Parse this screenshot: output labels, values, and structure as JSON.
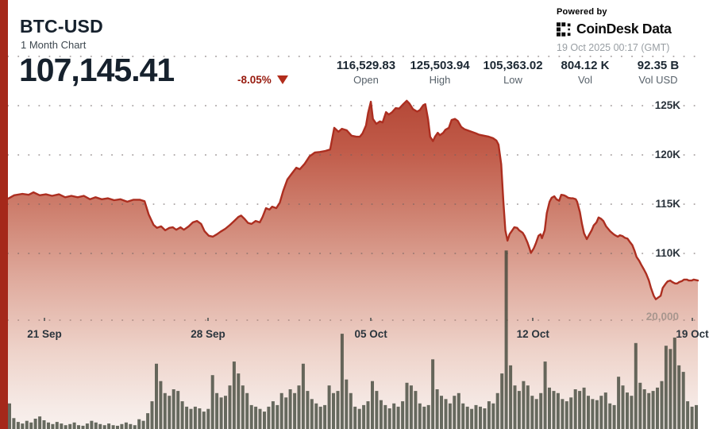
{
  "header": {
    "symbol": "BTC-USD",
    "period": "1 Month Chart",
    "price": "107,145.41",
    "change": "-8.05%",
    "stats": [
      {
        "value": "116,529.83",
        "label": "Open"
      },
      {
        "value": "125,503.94",
        "label": "High"
      },
      {
        "value": "105,363.02",
        "label": "Low"
      },
      {
        "value": "804.12 K",
        "label": "Vol"
      },
      {
        "value": "92.35 B",
        "label": "Vol USD"
      }
    ]
  },
  "branding": {
    "powered_by": "Powered by",
    "brand": "CoinDesk Data",
    "timestamp": "19 Oct 2025 00:17 (GMT)"
  },
  "colors": {
    "accent_line": "#ac2e20",
    "edge_bar": "#a5281a",
    "change_red": "#971a0e",
    "volume_bar": "rgba(62,68,55,0.78)",
    "fill_top": "#b34635",
    "fill_bottom": "#f9f2ef"
  },
  "chart_data": {
    "type": "area",
    "title": "BTC-USD 1 Month Chart",
    "legend": "none",
    "grid": "dotted horizontal",
    "y_axis": {
      "side": "right",
      "labels": [
        "125K",
        "120K",
        "115K",
        "110K"
      ],
      "label_values_k": [
        125,
        120,
        115,
        110
      ],
      "grid_values_k": [
        130,
        125,
        120,
        115,
        110
      ],
      "volume_label": "20,000",
      "volume_label_value_k": 20
    },
    "x_axis": {
      "labels": [
        "21 Sep",
        "28 Sep",
        "05 Oct",
        "12 Oct",
        "19 Oct"
      ],
      "positions": [
        0.053,
        0.29,
        0.526,
        0.761,
        0.992
      ]
    },
    "summary": {
      "open": 116529.83,
      "high": 125503.94,
      "low": 105363.02,
      "last": 107145.41,
      "change_pct": -8.05,
      "vol": "804.12 K",
      "vol_usd": "92.35 B"
    },
    "price_series": {
      "unit": "thousand USD",
      "x_unit": "fraction of 1-month range (19 Sep - 19 Oct 2025)",
      "points": [
        [
          0.0,
          115.55
        ],
        [
          0.009,
          115.9
        ],
        [
          0.021,
          116.05
        ],
        [
          0.03,
          115.95
        ],
        [
          0.037,
          116.2
        ],
        [
          0.046,
          115.9
        ],
        [
          0.055,
          116.0
        ],
        [
          0.064,
          115.85
        ],
        [
          0.074,
          116.0
        ],
        [
          0.083,
          115.7
        ],
        [
          0.092,
          115.85
        ],
        [
          0.101,
          115.7
        ],
        [
          0.11,
          115.85
        ],
        [
          0.119,
          115.5
        ],
        [
          0.127,
          115.7
        ],
        [
          0.136,
          115.5
        ],
        [
          0.145,
          115.6
        ],
        [
          0.154,
          115.4
        ],
        [
          0.163,
          115.5
        ],
        [
          0.173,
          115.25
        ],
        [
          0.182,
          115.45
        ],
        [
          0.191,
          115.45
        ],
        [
          0.198,
          115.3
        ],
        [
          0.204,
          113.95
        ],
        [
          0.211,
          112.9
        ],
        [
          0.216,
          112.6
        ],
        [
          0.222,
          112.75
        ],
        [
          0.228,
          112.35
        ],
        [
          0.234,
          112.6
        ],
        [
          0.239,
          112.65
        ],
        [
          0.244,
          112.4
        ],
        [
          0.25,
          112.65
        ],
        [
          0.255,
          112.4
        ],
        [
          0.262,
          112.75
        ],
        [
          0.268,
          113.15
        ],
        [
          0.274,
          113.3
        ],
        [
          0.28,
          113.0
        ],
        [
          0.285,
          112.25
        ],
        [
          0.291,
          111.8
        ],
        [
          0.297,
          111.7
        ],
        [
          0.303,
          111.95
        ],
        [
          0.308,
          112.2
        ],
        [
          0.315,
          112.5
        ],
        [
          0.322,
          112.9
        ],
        [
          0.328,
          113.3
        ],
        [
          0.334,
          113.7
        ],
        [
          0.338,
          113.85
        ],
        [
          0.343,
          113.5
        ],
        [
          0.348,
          113.1
        ],
        [
          0.353,
          113.0
        ],
        [
          0.359,
          113.3
        ],
        [
          0.365,
          113.15
        ],
        [
          0.369,
          113.7
        ],
        [
          0.374,
          114.6
        ],
        [
          0.379,
          114.45
        ],
        [
          0.383,
          114.75
        ],
        [
          0.389,
          114.6
        ],
        [
          0.394,
          115.15
        ],
        [
          0.399,
          116.35
        ],
        [
          0.405,
          117.5
        ],
        [
          0.412,
          118.15
        ],
        [
          0.418,
          118.7
        ],
        [
          0.423,
          118.55
        ],
        [
          0.43,
          119.1
        ],
        [
          0.437,
          119.85
        ],
        [
          0.445,
          120.25
        ],
        [
          0.452,
          120.3
        ],
        [
          0.46,
          120.4
        ],
        [
          0.467,
          120.55
        ],
        [
          0.473,
          122.75
        ],
        [
          0.479,
          122.35
        ],
        [
          0.484,
          122.65
        ],
        [
          0.491,
          122.5
        ],
        [
          0.498,
          121.95
        ],
        [
          0.505,
          121.85
        ],
        [
          0.51,
          121.85
        ],
        [
          0.514,
          122.2
        ],
        [
          0.519,
          123.0
        ],
        [
          0.522,
          124.25
        ],
        [
          0.526,
          125.4
        ],
        [
          0.529,
          123.65
        ],
        [
          0.534,
          123.15
        ],
        [
          0.539,
          123.4
        ],
        [
          0.543,
          123.3
        ],
        [
          0.548,
          124.35
        ],
        [
          0.552,
          124.1
        ],
        [
          0.557,
          124.35
        ],
        [
          0.562,
          124.75
        ],
        [
          0.567,
          124.7
        ],
        [
          0.573,
          125.15
        ],
        [
          0.578,
          125.5
        ],
        [
          0.582,
          125.2
        ],
        [
          0.587,
          124.65
        ],
        [
          0.593,
          124.4
        ],
        [
          0.597,
          124.55
        ],
        [
          0.602,
          125.05
        ],
        [
          0.605,
          125.15
        ],
        [
          0.609,
          123.6
        ],
        [
          0.612,
          121.85
        ],
        [
          0.616,
          121.4
        ],
        [
          0.619,
          121.85
        ],
        [
          0.623,
          122.25
        ],
        [
          0.626,
          122.0
        ],
        [
          0.631,
          122.25
        ],
        [
          0.634,
          122.55
        ],
        [
          0.639,
          122.75
        ],
        [
          0.643,
          123.55
        ],
        [
          0.648,
          123.65
        ],
        [
          0.652,
          123.45
        ],
        [
          0.657,
          122.85
        ],
        [
          0.662,
          122.6
        ],
        [
          0.666,
          122.5
        ],
        [
          0.672,
          122.35
        ],
        [
          0.678,
          122.2
        ],
        [
          0.683,
          122.05
        ],
        [
          0.69,
          121.95
        ],
        [
          0.697,
          121.85
        ],
        [
          0.703,
          121.7
        ],
        [
          0.708,
          121.45
        ],
        [
          0.711,
          121.05
        ],
        [
          0.715,
          119.05
        ],
        [
          0.718,
          115.4
        ],
        [
          0.721,
          112.35
        ],
        [
          0.724,
          111.3
        ],
        [
          0.727,
          111.95
        ],
        [
          0.731,
          112.35
        ],
        [
          0.734,
          112.65
        ],
        [
          0.738,
          112.6
        ],
        [
          0.741,
          112.35
        ],
        [
          0.746,
          112.1
        ],
        [
          0.749,
          111.75
        ],
        [
          0.753,
          111.1
        ],
        [
          0.756,
          110.5
        ],
        [
          0.758,
          110.05
        ],
        [
          0.762,
          110.5
        ],
        [
          0.765,
          111.0
        ],
        [
          0.769,
          111.8
        ],
        [
          0.772,
          111.95
        ],
        [
          0.774,
          111.55
        ],
        [
          0.778,
          112.35
        ],
        [
          0.781,
          114.1
        ],
        [
          0.785,
          115.25
        ],
        [
          0.788,
          115.65
        ],
        [
          0.792,
          115.8
        ],
        [
          0.795,
          115.5
        ],
        [
          0.799,
          115.35
        ],
        [
          0.802,
          115.95
        ],
        [
          0.806,
          115.9
        ],
        [
          0.809,
          115.8
        ],
        [
          0.812,
          115.65
        ],
        [
          0.816,
          115.6
        ],
        [
          0.819,
          115.6
        ],
        [
          0.823,
          115.5
        ],
        [
          0.825,
          115.25
        ],
        [
          0.829,
          114.2
        ],
        [
          0.832,
          113.0
        ],
        [
          0.835,
          112.05
        ],
        [
          0.839,
          111.45
        ],
        [
          0.842,
          111.85
        ],
        [
          0.846,
          112.35
        ],
        [
          0.849,
          112.85
        ],
        [
          0.853,
          113.15
        ],
        [
          0.856,
          113.65
        ],
        [
          0.86,
          113.5
        ],
        [
          0.863,
          113.3
        ],
        [
          0.867,
          112.75
        ],
        [
          0.87,
          112.5
        ],
        [
          0.873,
          112.25
        ],
        [
          0.877,
          112.0
        ],
        [
          0.88,
          111.85
        ],
        [
          0.884,
          111.7
        ],
        [
          0.887,
          111.85
        ],
        [
          0.891,
          111.75
        ],
        [
          0.894,
          111.6
        ],
        [
          0.898,
          111.5
        ],
        [
          0.901,
          111.2
        ],
        [
          0.905,
          110.85
        ],
        [
          0.908,
          110.3
        ],
        [
          0.911,
          109.65
        ],
        [
          0.915,
          109.25
        ],
        [
          0.918,
          108.85
        ],
        [
          0.922,
          108.35
        ],
        [
          0.925,
          107.95
        ],
        [
          0.929,
          107.25
        ],
        [
          0.932,
          106.5
        ],
        [
          0.936,
          105.7
        ],
        [
          0.939,
          105.35
        ],
        [
          0.942,
          105.5
        ],
        [
          0.946,
          105.7
        ],
        [
          0.949,
          106.5
        ],
        [
          0.953,
          106.9
        ],
        [
          0.956,
          107.15
        ],
        [
          0.96,
          107.25
        ],
        [
          0.963,
          107.1
        ],
        [
          0.967,
          106.95
        ],
        [
          0.97,
          106.95
        ],
        [
          0.973,
          107.1
        ],
        [
          0.977,
          107.2
        ],
        [
          0.98,
          107.35
        ],
        [
          0.984,
          107.35
        ],
        [
          0.987,
          107.25
        ],
        [
          0.991,
          107.25
        ],
        [
          0.994,
          107.35
        ],
        [
          1.0,
          107.25
        ]
      ]
    },
    "volume_series": {
      "unit": "thousand (volume axis: 20,000 gridline)",
      "values_k": [
        4.7,
        2.0,
        1.3,
        1.0,
        1.5,
        1.2,
        1.9,
        2.3,
        1.6,
        1.2,
        0.9,
        1.3,
        1.0,
        0.7,
        0.9,
        1.2,
        0.7,
        0.6,
        1.0,
        1.5,
        1.2,
        0.9,
        0.7,
        1.0,
        0.7,
        0.6,
        0.9,
        1.2,
        0.9,
        0.7,
        1.8,
        1.5,
        2.9,
        5.1,
        12.0,
        8.8,
        6.6,
        6.1,
        7.3,
        7.0,
        5.1,
        4.1,
        3.7,
        4.1,
        3.8,
        3.2,
        3.7,
        9.9,
        6.6,
        5.8,
        6.1,
        8.0,
        12.4,
        10.2,
        8.0,
        6.6,
        4.4,
        4.1,
        3.7,
        3.2,
        4.1,
        5.1,
        4.4,
        6.6,
        5.8,
        7.3,
        6.6,
        8.0,
        12.0,
        7.0,
        5.5,
        4.7,
        4.1,
        4.4,
        8.0,
        6.6,
        7.0,
        17.5,
        9.1,
        6.6,
        4.1,
        3.7,
        4.4,
        5.1,
        8.8,
        7.0,
        5.3,
        4.4,
        3.8,
        4.7,
        4.1,
        5.1,
        8.5,
        8.0,
        7.0,
        4.7,
        4.1,
        4.4,
        12.8,
        7.3,
        6.1,
        5.5,
        4.7,
        6.1,
        6.6,
        4.7,
        4.1,
        3.7,
        4.4,
        4.1,
        3.8,
        5.1,
        4.7,
        6.6,
        10.2,
        32.8,
        11.7,
        8.0,
        7.0,
        8.8,
        8.0,
        6.1,
        5.5,
        6.6,
        12.4,
        7.6,
        7.0,
        6.6,
        5.5,
        5.1,
        5.8,
        7.3,
        7.0,
        7.6,
        6.1,
        5.5,
        5.3,
        6.1,
        6.7,
        4.7,
        4.4,
        9.6,
        8.0,
        6.7,
        6.1,
        15.8,
        8.5,
        7.3,
        6.6,
        7.0,
        7.6,
        8.8,
        15.3,
        14.7,
        16.8,
        11.7,
        10.5,
        5.1,
        4.1,
        4.4
      ]
    }
  }
}
